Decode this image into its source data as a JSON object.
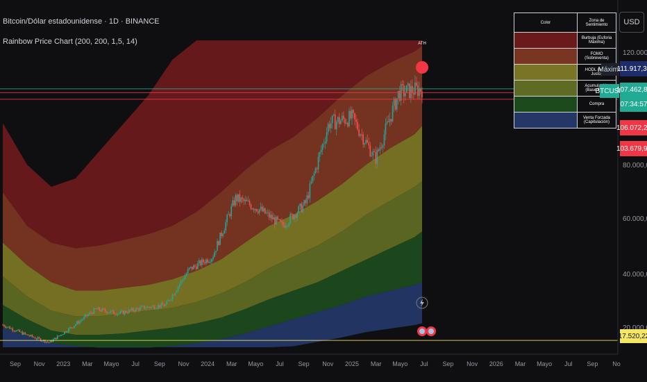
{
  "header": {
    "symbol_line": "Bitcoin/Dólar estadounidense · 1D · BINANCE",
    "indicator_line": "Rainbow Price Chart (200, 200, 1,5, 14)"
  },
  "currency_button": "USD",
  "ath_label": "ATH",
  "price_axis": {
    "ticks": [
      "120.000,00",
      "80.000,00",
      "60.000,00",
      "40.000,00",
      "20.000,00"
    ],
    "tags": {
      "max_label": "Máximo",
      "max_value": "111.917,37",
      "symbol_label": "BTCUSD",
      "current_value": "107.462,80",
      "countdown": "07:34:57",
      "red_1": "106.072,22",
      "red_2": "103.679,92",
      "low_value": "17.520,22"
    }
  },
  "time_axis": [
    "Sep",
    "Nov",
    "2023",
    "Mar",
    "Mayo",
    "Jul",
    "Sep",
    "Nov",
    "2024",
    "Mar",
    "Mayo",
    "Jul",
    "Sep",
    "Nov",
    "2025",
    "Mar",
    "Mayo",
    "Jul",
    "Sep",
    "Nov",
    "2026",
    "Mar",
    "Mayo",
    "Jul",
    "Sep",
    "No"
  ],
  "legend": {
    "header": [
      "Color",
      "Zona de Sentimiento"
    ],
    "rows": [
      {
        "color": "#6b1a1c",
        "label": "Burbuja (Euforia Máxima)"
      },
      {
        "color": "#7a3522",
        "label": "FOMO (Sobreventa)"
      },
      {
        "color": "#7a7525",
        "label": "HODL (Valor Justo)"
      },
      {
        "color": "#5f6a24",
        "label": "Acumulación (Base EMA)"
      },
      {
        "color": "#1d4a1c",
        "label": "Compra"
      },
      {
        "color": "#243766",
        "label": "Venta Forzada (Capitulación)"
      }
    ]
  },
  "colors": {
    "background": "#0f0f12",
    "candle_up": "#26a69a",
    "candle_down": "#ef5350",
    "accent_teal": "#22ab94",
    "accent_red": "#f23645",
    "low_tag": "#f5e663"
  },
  "chart_data": {
    "type": "line",
    "x_start": "2022-08",
    "x_end": "2026-11",
    "ylim": [
      15000,
      125000
    ],
    "x_dates": [
      "2022-08",
      "2022-10",
      "2022-12",
      "2023-02",
      "2023-04",
      "2023-06",
      "2023-08",
      "2023-10",
      "2023-12",
      "2024-02",
      "2024-04",
      "2024-06",
      "2024-08",
      "2024-10",
      "2024-12",
      "2025-02",
      "2025-04",
      "2025-06",
      "2025-07"
    ],
    "price": [
      23000,
      19500,
      16800,
      22500,
      28500,
      27000,
      29000,
      30000,
      42500,
      47000,
      68000,
      64000,
      58000,
      66000,
      95000,
      97000,
      82000,
      106000,
      107462
    ],
    "bands": [
      {
        "name": "Burbuja (Euforia Máxima)",
        "color": "#6b1a1c",
        "values": [
          95000,
          80000,
          72000,
          75000,
          85000,
          95000,
          105000,
          118000,
          125000,
          125000,
          125000,
          125000,
          125000,
          125000,
          125000,
          125000,
          125000,
          125000,
          125000
        ]
      },
      {
        "name": "FOMO (Sobreventa)",
        "color": "#7a3522",
        "values": [
          70000,
          58000,
          52000,
          50000,
          51000,
          53000,
          55000,
          58000,
          63000,
          70000,
          78000,
          85000,
          90000,
          97000,
          105000,
          112000,
          117000,
          121000,
          123000
        ]
      },
      {
        "name": "HODL (Valor Justo)",
        "color": "#7a7525",
        "values": [
          52000,
          44000,
          38000,
          35000,
          35000,
          36000,
          37000,
          39000,
          42000,
          46000,
          52000,
          58000,
          62000,
          67000,
          73000,
          80000,
          86000,
          91000,
          94000
        ]
      },
      {
        "name": "Acumulación (Base EMA)",
        "color": "#5f6a24",
        "values": [
          40000,
          33000,
          28000,
          26000,
          26000,
          27000,
          28000,
          29000,
          31000,
          34000,
          38000,
          43000,
          47000,
          51000,
          56000,
          62000,
          67000,
          72000,
          74000
        ]
      },
      {
        "name": "Compra",
        "color": "#1d4a1c",
        "values": [
          30000,
          25000,
          21000,
          19500,
          19500,
          20000,
          21000,
          22000,
          23500,
          25500,
          28500,
          32000,
          35000,
          38000,
          42000,
          46000,
          50000,
          54000,
          56000
        ]
      },
      {
        "name": "Venta Forzada (Capitulación)",
        "color": "#243766",
        "values": [
          22000,
          19000,
          16500,
          15500,
          15000,
          15000,
          15000,
          15500,
          16500,
          18000,
          20000,
          22500,
          25000,
          27500,
          30000,
          33000,
          35000,
          37000,
          38000
        ]
      }
    ],
    "horizontal_lines": [
      {
        "value": 107462.8,
        "color": "#22ab94"
      },
      {
        "value": 106072.22,
        "color": "#f23645"
      },
      {
        "value": 103679.92,
        "color": "#f23645"
      },
      {
        "value": 17520.22,
        "color": "#f5e663"
      }
    ]
  }
}
